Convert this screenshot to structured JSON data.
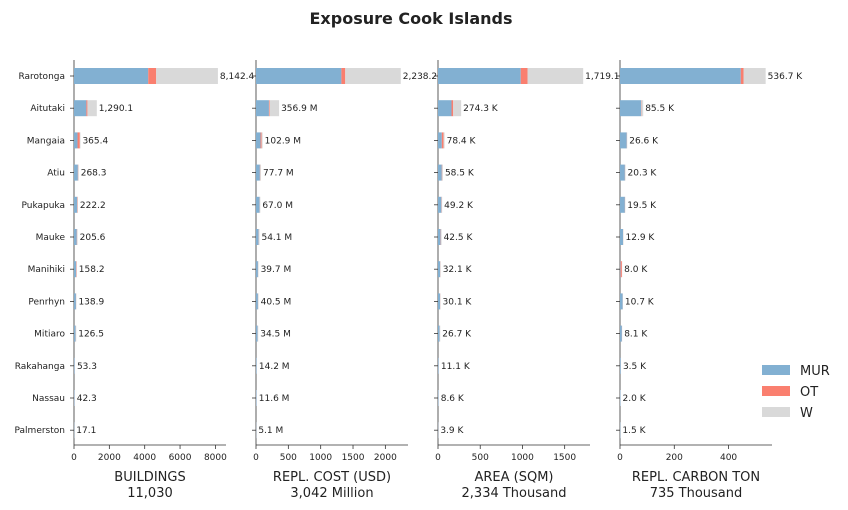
{
  "title": "Exposure Cook Islands",
  "categories": [
    "Rarotonga",
    "Aitutaki",
    "Mangaia",
    "Atiu",
    "Pukapuka",
    "Mauke",
    "Manihiki",
    "Penrhyn",
    "Mitiaro",
    "Rakahanga",
    "Nassau",
    "Palmerston"
  ],
  "legend": [
    {
      "name": "MUR",
      "color": "#82b0d2"
    },
    {
      "name": "OT",
      "color": "#fa7f6f"
    },
    {
      "name": "W",
      "color": "#d9d9d9"
    }
  ],
  "chart_data": [
    {
      "type": "bar",
      "xlabel": "BUILDINGS",
      "total_label": "11,030",
      "xlim": [
        0,
        8600
      ],
      "ticks": [
        0,
        2000,
        4000,
        6000,
        8000
      ],
      "tick_labels": [
        "0",
        "2000",
        "4000",
        "6000",
        "8000"
      ],
      "series": [
        {
          "name": "MUR",
          "values": [
            4200,
            700,
            200,
            220,
            180,
            160,
            120,
            110,
            90,
            40,
            30,
            15
          ]
        },
        {
          "name": "OT",
          "values": [
            450,
            60,
            130,
            20,
            20,
            20,
            20,
            10,
            10,
            5,
            5,
            1
          ]
        },
        {
          "name": "W",
          "values": [
            3492.4,
            530.1,
            35.4,
            28.3,
            22.2,
            25.6,
            18.2,
            18.9,
            26.5,
            8.3,
            7.3,
            1.1
          ]
        }
      ],
      "totals": [
        8142.4,
        1290.1,
        365.4,
        268.3,
        222.2,
        205.6,
        158.2,
        138.9,
        126.5,
        53.3,
        42.3,
        17.1
      ],
      "total_labels": [
        "8,142.4",
        "1,290.1",
        "365.4",
        "268.3",
        "222.2",
        "205.6",
        "158.2",
        "138.9",
        "126.5",
        "53.3",
        "42.3",
        "17.1"
      ]
    },
    {
      "type": "bar",
      "xlabel": "REPL. COST (USD)",
      "total_label": "3,042 Million",
      "xlim": [
        0,
        2350
      ],
      "ticks": [
        0,
        500,
        1000,
        1500,
        2000
      ],
      "tick_labels": [
        "0",
        "500",
        "1000",
        "1500",
        "2000"
      ],
      "series": [
        {
          "name": "MUR",
          "values": [
            1320,
            200,
            70,
            60,
            55,
            40,
            30,
            30,
            25,
            10,
            8,
            4
          ]
        },
        {
          "name": "OT",
          "values": [
            60,
            10,
            15,
            5,
            3,
            3,
            2,
            2,
            2,
            1,
            1,
            0.5
          ]
        },
        {
          "name": "W",
          "values": [
            858.2,
            146.9,
            17.9,
            12.7,
            9.0,
            11.1,
            7.7,
            8.5,
            7.5,
            3.2,
            2.6,
            0.6
          ]
        }
      ],
      "totals": [
        2238.2,
        356.9,
        102.9,
        77.7,
        67.0,
        54.1,
        39.7,
        40.5,
        34.5,
        14.2,
        11.6,
        5.1
      ],
      "total_labels": [
        "2,238.2",
        "356.9 M",
        "102.9 M",
        "77.7 M",
        "67.0 M",
        "54.1 M",
        "39.7 M",
        "40.5 M",
        "34.5 M",
        "14.2 M",
        "11.6 M",
        "5.1 M"
      ]
    },
    {
      "type": "bar",
      "xlabel": "AREA (SQM)",
      "total_label": "2,334 Thousand",
      "xlim": [
        0,
        1800
      ],
      "ticks": [
        0,
        500,
        1000,
        1500
      ],
      "tick_labels": [
        "0",
        "500",
        "1000",
        "1500"
      ],
      "series": [
        {
          "name": "MUR",
          "values": [
            980,
            160,
            45,
            45,
            40,
            30,
            25,
            25,
            18,
            8,
            6,
            3
          ]
        },
        {
          "name": "OT",
          "values": [
            80,
            20,
            20,
            5,
            4,
            4,
            2,
            2,
            2,
            1,
            1,
            0.5
          ]
        },
        {
          "name": "W",
          "values": [
            659.1,
            94.3,
            13.4,
            8.5,
            5.2,
            8.5,
            5.1,
            3.1,
            6.7,
            2.1,
            1.6,
            0.4
          ]
        }
      ],
      "totals": [
        1719.1,
        274.3,
        78.4,
        58.5,
        49.2,
        42.5,
        32.1,
        30.1,
        26.7,
        11.1,
        8.6,
        3.9
      ],
      "total_labels": [
        "1,719.1",
        "274.3 K",
        "78.4 K",
        "58.5 K",
        "49.2 K",
        "42.5 K",
        "32.1 K",
        "30.1 K",
        "26.7 K",
        "11.1 K",
        "8.6 K",
        "3.9 K"
      ]
    },
    {
      "type": "bar",
      "xlabel": "REPL. CARBON TON",
      "total_label": "735 Thousand",
      "xlim": [
        0,
        560
      ],
      "ticks": [
        0,
        200,
        400
      ],
      "tick_labels": [
        "0",
        "200",
        "400"
      ],
      "series": [
        {
          "name": "MUR",
          "values": [
            445,
            78,
            25,
            18,
            18,
            11,
            2,
            10,
            7,
            3,
            1.8,
            1.3
          ]
        },
        {
          "name": "OT",
          "values": [
            10,
            1,
            0.5,
            0.5,
            0.5,
            0.5,
            5,
            0.3,
            0.3,
            0.2,
            0.1,
            0.1
          ]
        },
        {
          "name": "W",
          "values": [
            81.7,
            6.5,
            1.1,
            1.8,
            1.0,
            1.4,
            1.0,
            0.4,
            0.8,
            0.3,
            0.1,
            0.1
          ]
        }
      ],
      "totals": [
        536.7,
        85.5,
        26.6,
        20.3,
        19.5,
        12.9,
        8.0,
        10.7,
        8.1,
        3.5,
        2.0,
        1.5
      ],
      "total_labels": [
        "536.7 K",
        "85.5 K",
        "26.6 K",
        "20.3 K",
        "19.5 K",
        "12.9 K",
        "8.0 K",
        "10.7 K",
        "8.1 K",
        "3.5 K",
        "2.0 K",
        "1.5 K"
      ]
    }
  ]
}
